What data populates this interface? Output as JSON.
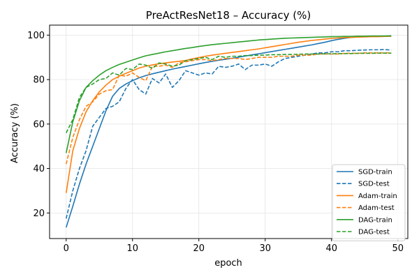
{
  "chart_data": {
    "type": "line",
    "title": "PreActResNet18 – Accuracy (%)",
    "xlabel": "epoch",
    "ylabel": "Accuracy (%)",
    "xlim": [
      -2.5,
      51.5
    ],
    "ylim": [
      8.5,
      104.5
    ],
    "xticks": [
      0,
      10,
      20,
      30,
      40,
      50
    ],
    "yticks": [
      20,
      40,
      60,
      80,
      100
    ],
    "grid": true,
    "legend_position": "lower-right",
    "x": [
      0,
      1,
      2,
      3,
      4,
      5,
      6,
      7,
      8,
      9,
      10,
      11,
      12,
      13,
      14,
      15,
      16,
      17,
      18,
      19,
      20,
      21,
      22,
      23,
      24,
      25,
      26,
      27,
      28,
      29,
      30,
      31,
      32,
      33,
      34,
      35,
      36,
      37,
      38,
      39,
      40,
      41,
      42,
      43,
      44,
      45,
      46,
      47,
      48,
      49
    ],
    "series": [
      {
        "name": "SGD-train",
        "color": "#1f77b4",
        "dash": false,
        "values": [
          13.5,
          23.0,
          33.0,
          42.0,
          50.0,
          58.0,
          66.0,
          72.5,
          76.0,
          78.0,
          79.5,
          80.8,
          81.8,
          82.6,
          83.3,
          84.0,
          84.7,
          85.3,
          85.9,
          86.5,
          87.1,
          87.7,
          88.2,
          88.7,
          89.1,
          89.6,
          90.1,
          90.6,
          91.1,
          91.6,
          92.1,
          92.6,
          93.1,
          93.6,
          94.1,
          94.6,
          95.1,
          95.6,
          96.2,
          96.8,
          97.5,
          98.1,
          98.6,
          99.0,
          99.2,
          99.3,
          99.4,
          99.4,
          99.5,
          99.5
        ]
      },
      {
        "name": "SGD-test",
        "color": "#1f77b4",
        "dash": true,
        "values": [
          17.5,
          30.0,
          40.0,
          48.0,
          59.0,
          63.0,
          67.0,
          68.0,
          70.0,
          76.0,
          80.0,
          75.5,
          73.5,
          80.5,
          78.5,
          82.5,
          76.5,
          79.5,
          84.0,
          83.0,
          82.0,
          83.0,
          82.5,
          86.0,
          85.5,
          86.0,
          87.0,
          84.5,
          86.5,
          86.5,
          87.0,
          86.0,
          88.0,
          89.5,
          90.0,
          90.5,
          91.0,
          91.5,
          92.0,
          92.0,
          92.5,
          92.5,
          93.0,
          93.0,
          93.2,
          93.3,
          93.4,
          93.4,
          93.5,
          93.3
        ]
      },
      {
        "name": "Adam-train",
        "color": "#ff7f0e",
        "dash": false,
        "values": [
          29.0,
          48.0,
          58.0,
          65.5,
          70.5,
          74.5,
          77.5,
          80.0,
          81.5,
          82.8,
          84.0,
          85.2,
          86.0,
          86.6,
          87.1,
          87.5,
          87.9,
          88.2,
          88.6,
          89.3,
          89.9,
          90.5,
          91.0,
          91.4,
          91.8,
          92.2,
          92.6,
          93.0,
          93.4,
          93.8,
          94.3,
          94.8,
          95.3,
          95.8,
          96.3,
          96.8,
          97.2,
          97.6,
          97.9,
          98.2,
          98.5,
          98.7,
          98.9,
          99.0,
          99.1,
          99.2,
          99.3,
          99.3,
          99.4,
          99.5
        ]
      },
      {
        "name": "Adam-test",
        "color": "#ff7f0e",
        "dash": true,
        "values": [
          42.0,
          54.0,
          62.0,
          68.0,
          70.0,
          73.5,
          75.0,
          75.5,
          82.0,
          81.5,
          83.0,
          81.0,
          79.5,
          86.0,
          86.0,
          86.5,
          85.5,
          87.5,
          88.0,
          88.5,
          89.0,
          89.0,
          88.5,
          89.0,
          89.5,
          89.5,
          89.5,
          89.0,
          89.5,
          90.0,
          90.0,
          90.0,
          90.5,
          90.5,
          90.5,
          91.0,
          91.0,
          91.0,
          91.5,
          91.5,
          91.5,
          91.5,
          91.8,
          91.8,
          91.8,
          92.0,
          92.0,
          92.0,
          92.0,
          92.0
        ]
      },
      {
        "name": "DAG-train",
        "color": "#2ca02c",
        "dash": false,
        "values": [
          47.0,
          61.0,
          70.5,
          76.5,
          79.5,
          82.0,
          84.0,
          85.5,
          86.8,
          87.8,
          88.8,
          89.8,
          90.7,
          91.3,
          91.9,
          92.5,
          93.0,
          93.5,
          94.0,
          94.4,
          94.9,
          95.3,
          95.7,
          96.0,
          96.3,
          96.6,
          96.9,
          97.2,
          97.5,
          97.8,
          98.0,
          98.2,
          98.4,
          98.6,
          98.7,
          98.8,
          98.9,
          99.0,
          99.1,
          99.2,
          99.3,
          99.3,
          99.4,
          99.4,
          99.5,
          99.5,
          99.6,
          99.6,
          99.6,
          99.7
        ]
      },
      {
        "name": "DAG-test",
        "color": "#2ca02c",
        "dash": true,
        "values": [
          56.0,
          62.0,
          72.0,
          76.5,
          78.0,
          80.0,
          80.5,
          83.0,
          82.0,
          85.0,
          84.5,
          87.0,
          86.5,
          85.0,
          87.5,
          87.0,
          86.0,
          86.5,
          88.5,
          89.0,
          89.5,
          90.0,
          89.0,
          90.5,
          90.0,
          90.5,
          90.5,
          90.8,
          90.8,
          91.0,
          91.0,
          91.2,
          91.2,
          91.3,
          91.3,
          91.4,
          91.5,
          91.5,
          91.5,
          91.6,
          91.6,
          91.7,
          91.7,
          91.7,
          91.8,
          91.8,
          91.8,
          91.9,
          91.9,
          91.9
        ]
      }
    ]
  }
}
